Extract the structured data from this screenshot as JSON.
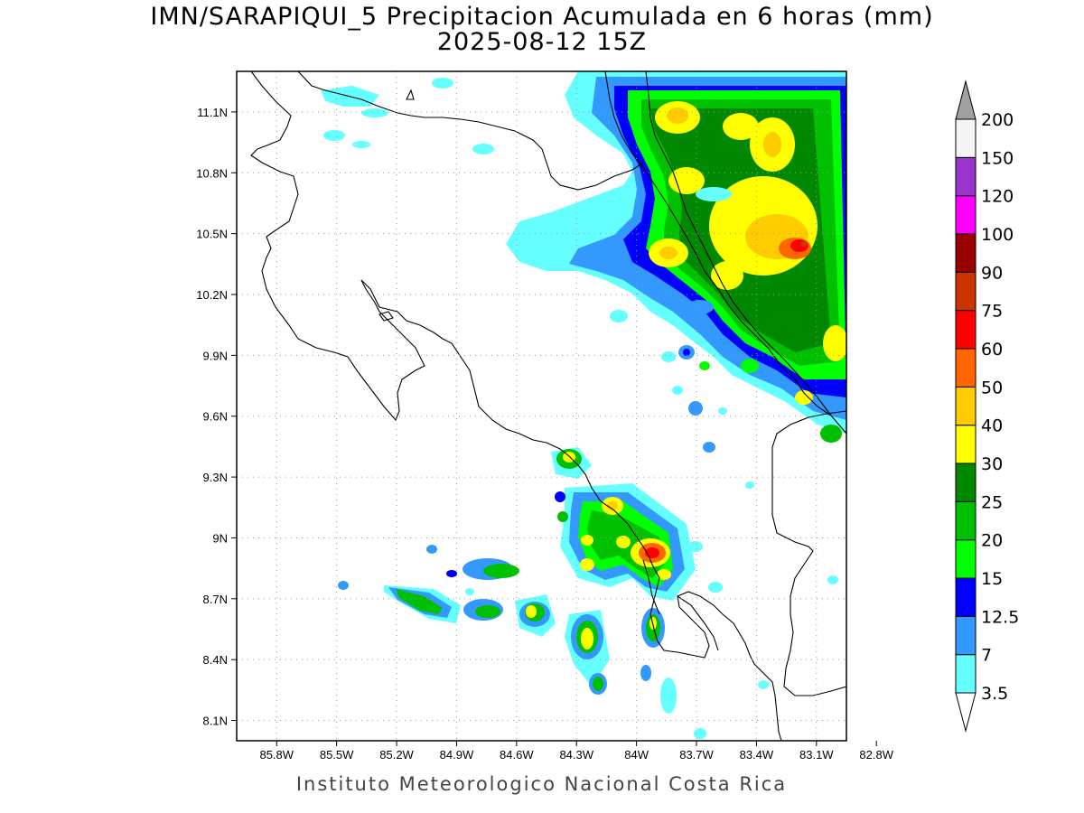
{
  "title": "IMN/SARAPIQUI_5 Precipitacion Acumulada en 6 horas (mm)",
  "subtitle": "2025-08-12 15Z",
  "credit": "Instituto Meteorologico Nacional Costa Rica",
  "map": {
    "lon_range": [
      -86.0,
      -82.95
    ],
    "lat_range": [
      8.0,
      11.3
    ],
    "lon_ticks": [
      {
        "value": -85.8,
        "label": "85.8W"
      },
      {
        "value": -85.5,
        "label": "85.5W"
      },
      {
        "value": -85.2,
        "label": "85.2W"
      },
      {
        "value": -84.9,
        "label": "84.9W"
      },
      {
        "value": -84.6,
        "label": "84.6W"
      },
      {
        "value": -84.3,
        "label": "84.3W"
      },
      {
        "value": -84.0,
        "label": "84W"
      },
      {
        "value": -83.7,
        "label": "83.7W"
      },
      {
        "value": -83.4,
        "label": "83.4W"
      },
      {
        "value": -83.1,
        "label": "83.1W"
      },
      {
        "value": -82.8,
        "label": "82.8W"
      }
    ],
    "lat_ticks": [
      {
        "value": 11.1,
        "label": "11.1N"
      },
      {
        "value": 10.8,
        "label": "10.8N"
      },
      {
        "value": 10.5,
        "label": "10.5N"
      },
      {
        "value": 10.2,
        "label": "10.2N"
      },
      {
        "value": 9.9,
        "label": "9.9N"
      },
      {
        "value": 9.6,
        "label": "9.6N"
      },
      {
        "value": 9.3,
        "label": "9.3N"
      },
      {
        "value": 9.0,
        "label": "9N"
      },
      {
        "value": 8.7,
        "label": "8.7N"
      },
      {
        "value": 8.4,
        "label": "8.4N"
      },
      {
        "value": 8.1,
        "label": "8.1N"
      }
    ],
    "grid": true
  },
  "colorbar": {
    "levels": [
      {
        "label": "3.5",
        "color": "#66ffff"
      },
      {
        "label": "7",
        "color": "#3399ff"
      },
      {
        "label": "12.5",
        "color": "#0000ff"
      },
      {
        "label": "15",
        "color": "#00ff00"
      },
      {
        "label": "20",
        "color": "#00c000"
      },
      {
        "label": "25",
        "color": "#008800"
      },
      {
        "label": "30",
        "color": "#ffff00"
      },
      {
        "label": "40",
        "color": "#ffcc00"
      },
      {
        "label": "50",
        "color": "#ff6600"
      },
      {
        "label": "60",
        "color": "#ff0000"
      },
      {
        "label": "75",
        "color": "#cc3300"
      },
      {
        "label": "90",
        "color": "#990000"
      },
      {
        "label": "100",
        "color": "#ff00ff"
      },
      {
        "label": "120",
        "color": "#9933cc"
      },
      {
        "label": "150",
        "color": "#f5f5f5"
      },
      {
        "label": "200",
        "color": "#a0a0a0"
      }
    ],
    "segments": [
      "#66ffff",
      "#3399ff",
      "#0000ff",
      "#00ff00",
      "#00c000",
      "#008800",
      "#ffff00",
      "#ffcc00",
      "#ff6600",
      "#ff0000",
      "#cc3300",
      "#990000",
      "#ff00ff",
      "#9933cc",
      "#f5f5f5"
    ],
    "top_triangle_color": "#a0a0a0",
    "bottom_triangle_color": "#ffffff"
  }
}
